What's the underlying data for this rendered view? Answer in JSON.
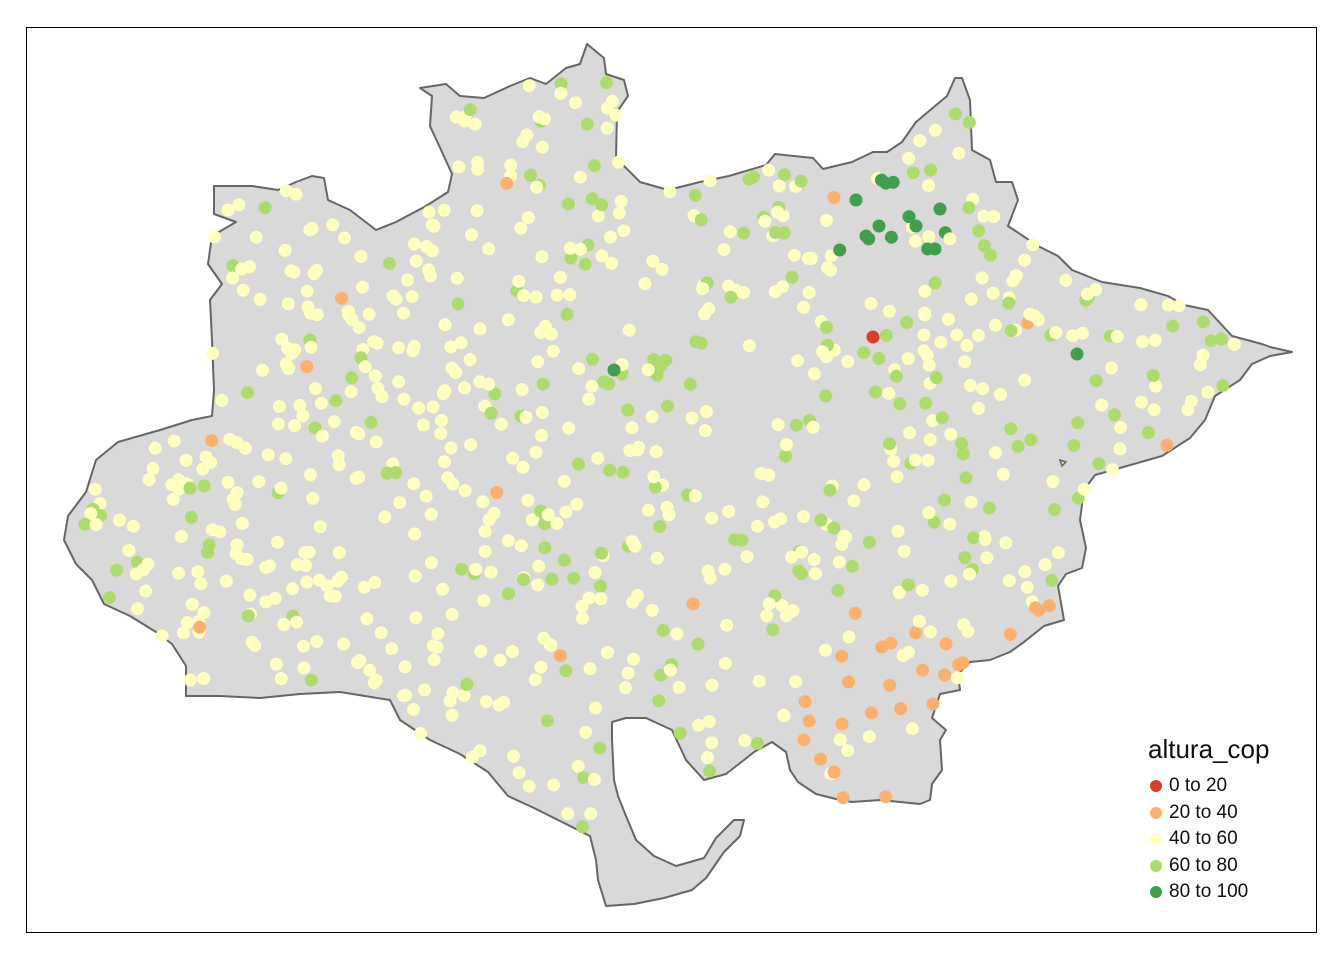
{
  "legend": {
    "title": "altura_cop",
    "classes": [
      {
        "label": "0 to 20",
        "color": "#d7402b"
      },
      {
        "label": "20 to 40",
        "color": "#fdb06c"
      },
      {
        "label": "40 to 60",
        "color": "#ffffc0"
      },
      {
        "label": "60 to 80",
        "color": "#aedc6c"
      },
      {
        "label": "80 to 100",
        "color": "#3f9f4d"
      }
    ]
  },
  "colors": {
    "region_fill": "#d9d9d9",
    "region_border": "#666666",
    "frame": "#000000"
  }
}
